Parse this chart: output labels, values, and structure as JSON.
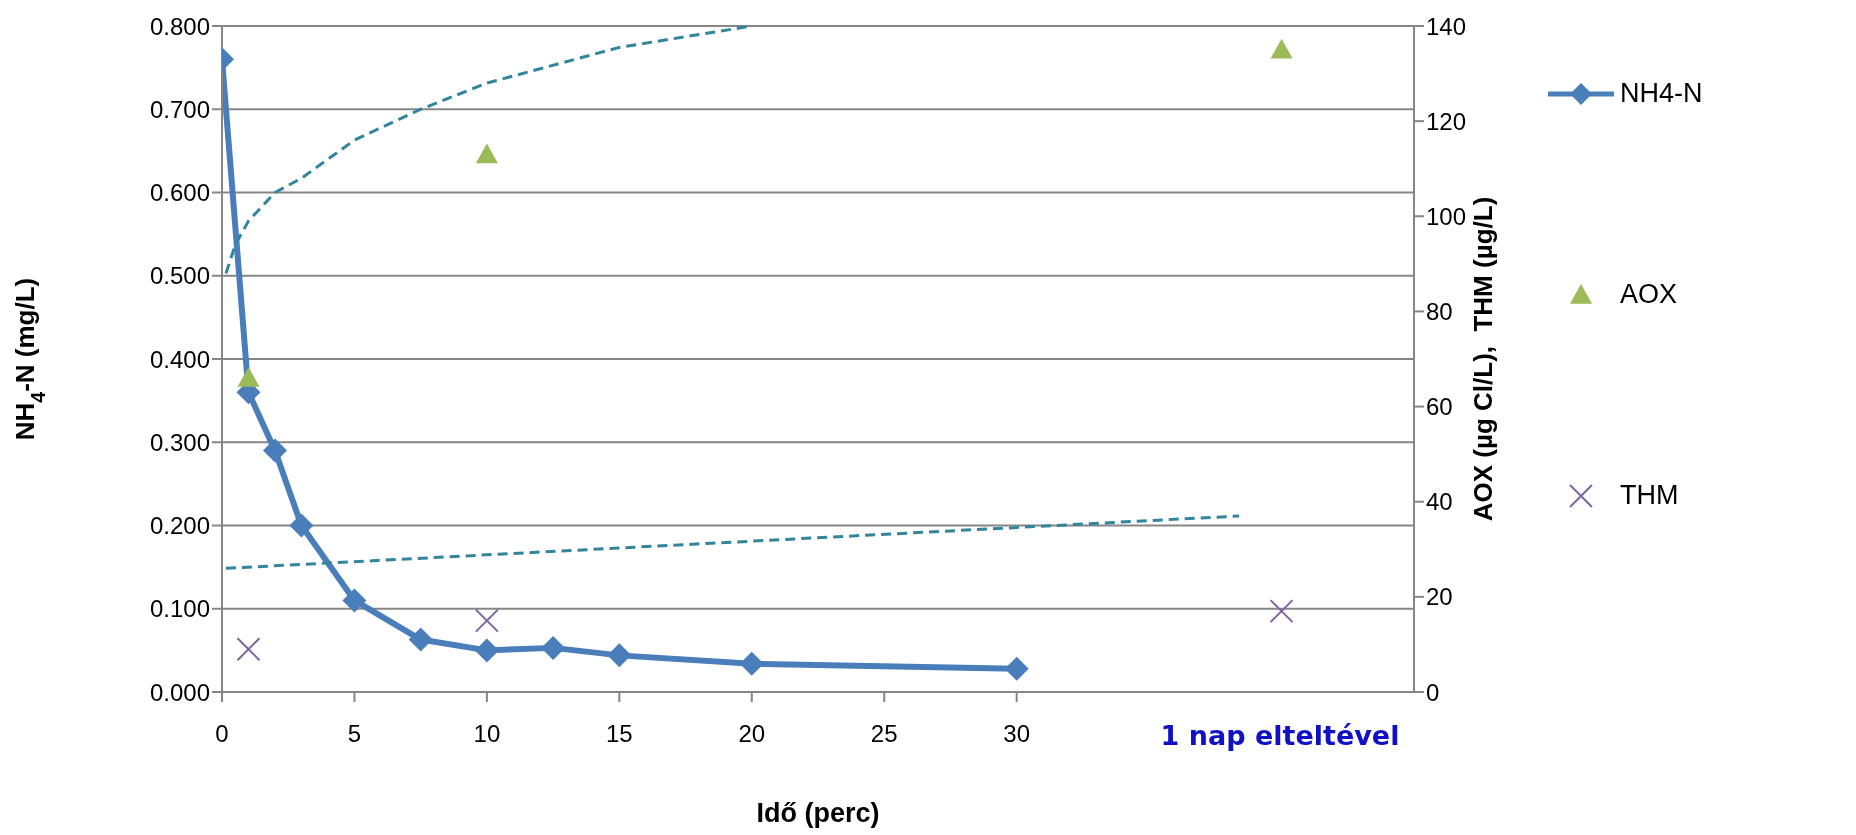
{
  "chart_data": {
    "type": "line",
    "xlabel": "Idő (perc)",
    "ylabel": "NH$_{4}$-N (mg/L)",
    "y2label": "AOX (µg Cl/L),  THM (µg/L)",
    "xlim": [
      0,
      45
    ],
    "xticks": [
      0,
      5,
      10,
      15,
      20,
      25,
      30
    ],
    "annotations": [
      "1 nap elteltével"
    ],
    "ylim": [
      0,
      0.8
    ],
    "yticks": [
      {
        "value": 0,
        "label": "0.000"
      },
      {
        "value": 0.1,
        "label": "0.100"
      },
      {
        "value": 0.2,
        "label": "0.200"
      },
      {
        "value": 0.3,
        "label": "0.300"
      },
      {
        "value": 0.4,
        "label": "0.400"
      },
      {
        "value": 0.5,
        "label": "0.500"
      },
      {
        "value": 0.6,
        "label": "0.600"
      },
      {
        "value": 0.7,
        "label": "0.700"
      },
      {
        "value": 0.8,
        "label": "0.800"
      }
    ],
    "y2lim": [
      0,
      140
    ],
    "y2ticks": [
      0,
      20,
      40,
      60,
      80,
      100,
      120,
      140
    ],
    "grid": "y",
    "legend": "right",
    "series": [
      {
        "name": "NH4-N",
        "color": "#4a7ebb",
        "marker": "diamond",
        "x": [
          0,
          1,
          2,
          3,
          5,
          7.5,
          10,
          12.5,
          15,
          20,
          30
        ],
        "values": [
          0.76,
          0.36,
          0.29,
          0.2,
          0.11,
          0.063,
          0.05,
          0.053,
          0.044,
          0.034,
          0.028
        ]
      },
      {
        "name": "AOX",
        "type": "scatter",
        "axis": "y2",
        "color": "#9bbb59",
        "marker": "triangle",
        "x": [
          1,
          10,
          40
        ],
        "values": [
          66,
          113,
          135
        ]
      },
      {
        "name": "THM",
        "type": "scatter",
        "axis": "y2",
        "color": "#8064a2",
        "marker": "cross",
        "x": [
          1,
          10,
          40
        ],
        "values": [
          9,
          15,
          17
        ]
      },
      {
        "type": "line",
        "axis": "y2",
        "color": "#31859c",
        "marker": "none",
        "line_style": "dashed",
        "x": [
          0.15,
          0.5,
          1,
          2,
          3,
          5,
          7.5,
          10,
          15,
          20
        ],
        "values": [
          88,
          94,
          99,
          105,
          108,
          116,
          122.5,
          128,
          135.5,
          140
        ]
      },
      {
        "type": "line",
        "axis": "y2",
        "color": "#31859c",
        "marker": "none",
        "line_style": "dashed",
        "x": [
          0.15,
          38.4
        ],
        "values": [
          26,
          37
        ]
      }
    ]
  }
}
